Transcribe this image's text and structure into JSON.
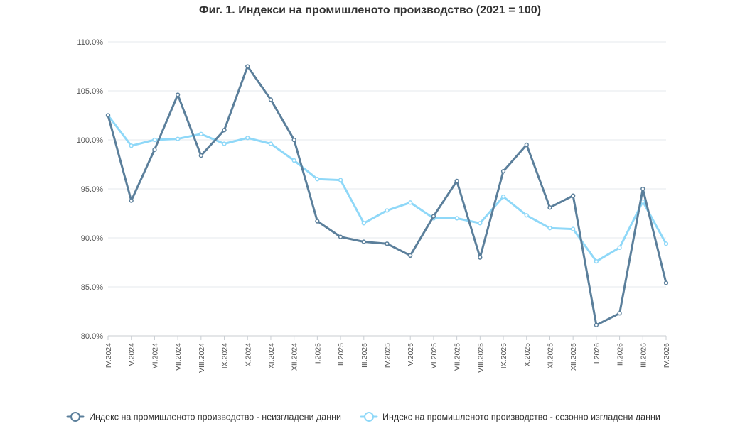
{
  "chart_data": {
    "type": "line",
    "title": "Фиг. 1. Индекси на промишленото производство (2021 = 100)",
    "xlabel": "",
    "ylabel": "",
    "ylim": [
      80,
      110
    ],
    "yticks": [
      "80.0%",
      "85.0%",
      "90.0%",
      "95.0%",
      "100.0%",
      "105.0%",
      "110.0%"
    ],
    "grid": true,
    "legend_position": "bottom",
    "categories": [
      "IV.2024",
      "V.2024",
      "VI.2024",
      "VII.2024",
      "VIII.2024",
      "IX.2024",
      "X.2024",
      "XI.2024",
      "XII.2024",
      "I.2025",
      "II.2025",
      "III.2025",
      "IV.2025",
      "V.2025",
      "VI.2025",
      "VII.2025",
      "VIII.2025",
      "IX.2025",
      "X.2025",
      "XI.2025",
      "XII.2025",
      "I.2026",
      "II.2026",
      "III.2026",
      "IV.2026"
    ],
    "series": [
      {
        "name": "Индекс на промишленото производство - неизгладени данни",
        "color": "#5b7f9b",
        "values": [
          102.5,
          93.8,
          99.0,
          104.6,
          98.4,
          101.0,
          107.5,
          104.1,
          100.0,
          91.7,
          90.1,
          89.6,
          89.4,
          88.2,
          92.2,
          95.8,
          88.0,
          96.8,
          99.5,
          93.1,
          94.3,
          81.1,
          82.3,
          95.0,
          85.4
        ]
      },
      {
        "name": "Индекс на промишленото производство - сезонно изгладени данни",
        "color": "#8fd8f8",
        "values": [
          102.5,
          99.4,
          100.0,
          100.1,
          100.6,
          99.6,
          100.2,
          99.6,
          97.9,
          96.0,
          95.9,
          91.5,
          92.8,
          93.6,
          92.0,
          92.0,
          91.5,
          94.2,
          92.3,
          91.0,
          90.9,
          87.6,
          89.0,
          93.7,
          89.4
        ]
      }
    ]
  }
}
